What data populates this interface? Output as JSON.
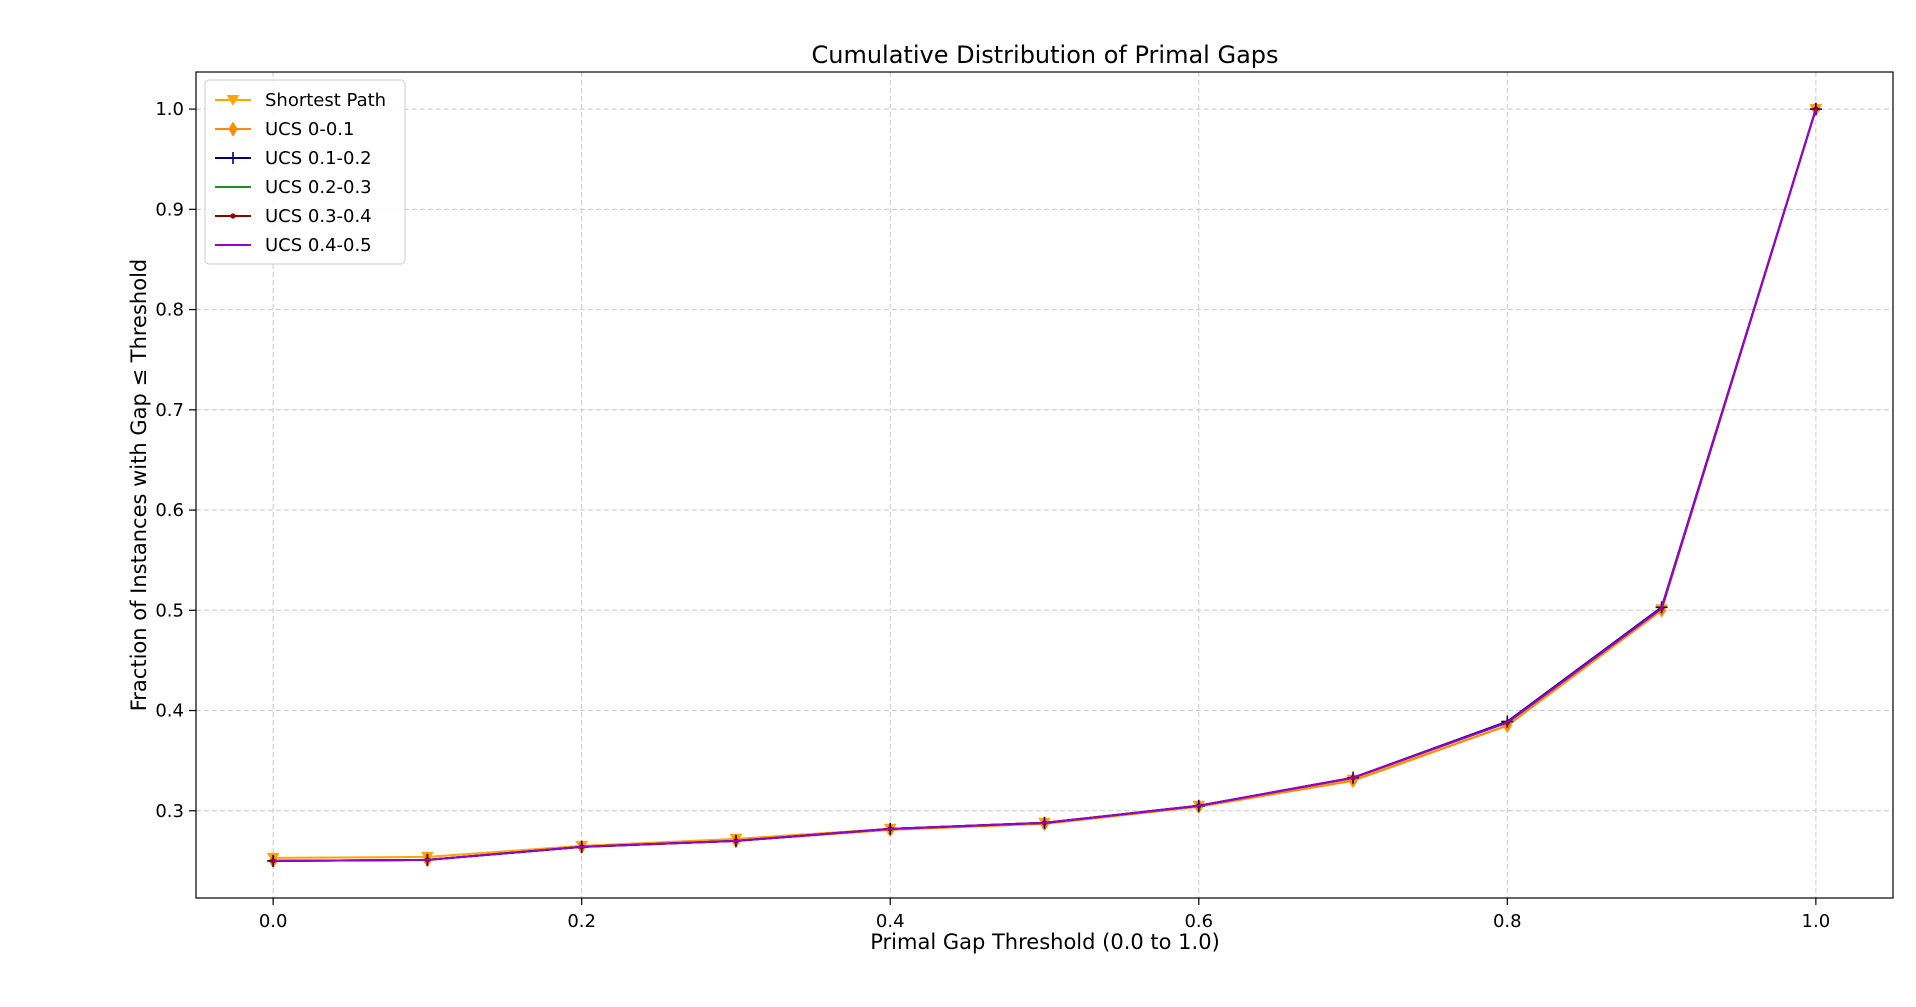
{
  "chart_data": {
    "type": "line",
    "title": "Cumulative Distribution of Primal Gaps",
    "xlabel": "Primal Gap Threshold (0.0 to 1.0)",
    "ylabel": "Fraction of Instances with Gap ≤ Threshold",
    "xlim": [
      -0.05,
      1.05
    ],
    "ylim": [
      0.213,
      1.037
    ],
    "xticks": [
      0.0,
      0.2,
      0.4,
      0.6,
      0.8,
      1.0
    ],
    "xtick_labels": [
      "0.0",
      "0.2",
      "0.4",
      "0.6",
      "0.8",
      "1.0"
    ],
    "yticks": [
      0.3,
      0.4,
      0.5,
      0.6,
      0.7,
      0.8,
      0.9,
      1.0
    ],
    "ytick_labels": [
      "0.3",
      "0.4",
      "0.5",
      "0.6",
      "0.7",
      "0.8",
      "0.9",
      "1.0"
    ],
    "grid": true,
    "legend_position": "top-left",
    "x": [
      0.0,
      0.1,
      0.2,
      0.3,
      0.4,
      0.5,
      0.6,
      0.7,
      0.8,
      0.9,
      1.0
    ],
    "series": [
      {
        "name": "Shortest Path",
        "color": "#ffa500",
        "marker": "triangle-down",
        "values": [
          0.253,
          0.254,
          0.265,
          0.272,
          0.282,
          0.288,
          0.305,
          0.331,
          0.385,
          0.501,
          1.0
        ]
      },
      {
        "name": "UCS 0-0.1",
        "color": "#ff8c00",
        "marker": "diamond",
        "values": [
          0.25,
          0.251,
          0.264,
          0.27,
          0.281,
          0.287,
          0.304,
          0.33,
          0.385,
          0.5,
          1.0
        ]
      },
      {
        "name": "UCS 0.1-0.2",
        "color": "#000080",
        "marker": "plus",
        "values": [
          0.25,
          0.251,
          0.264,
          0.27,
          0.282,
          0.288,
          0.305,
          0.333,
          0.389,
          0.503,
          1.0
        ]
      },
      {
        "name": "UCS 0.2-0.3",
        "color": "#228b22",
        "marker": "none",
        "values": [
          0.25,
          0.251,
          0.264,
          0.27,
          0.282,
          0.288,
          0.305,
          0.333,
          0.388,
          0.502,
          1.0
        ]
      },
      {
        "name": "UCS 0.3-0.4",
        "color": "#8b0000",
        "marker": "dot",
        "values": [
          0.25,
          0.251,
          0.264,
          0.27,
          0.282,
          0.288,
          0.305,
          0.333,
          0.388,
          0.502,
          1.0
        ]
      },
      {
        "name": "UCS 0.4-0.5",
        "color": "#9400d3",
        "marker": "none",
        "values": [
          0.25,
          0.251,
          0.264,
          0.27,
          0.282,
          0.288,
          0.305,
          0.333,
          0.388,
          0.502,
          1.0
        ]
      }
    ]
  }
}
